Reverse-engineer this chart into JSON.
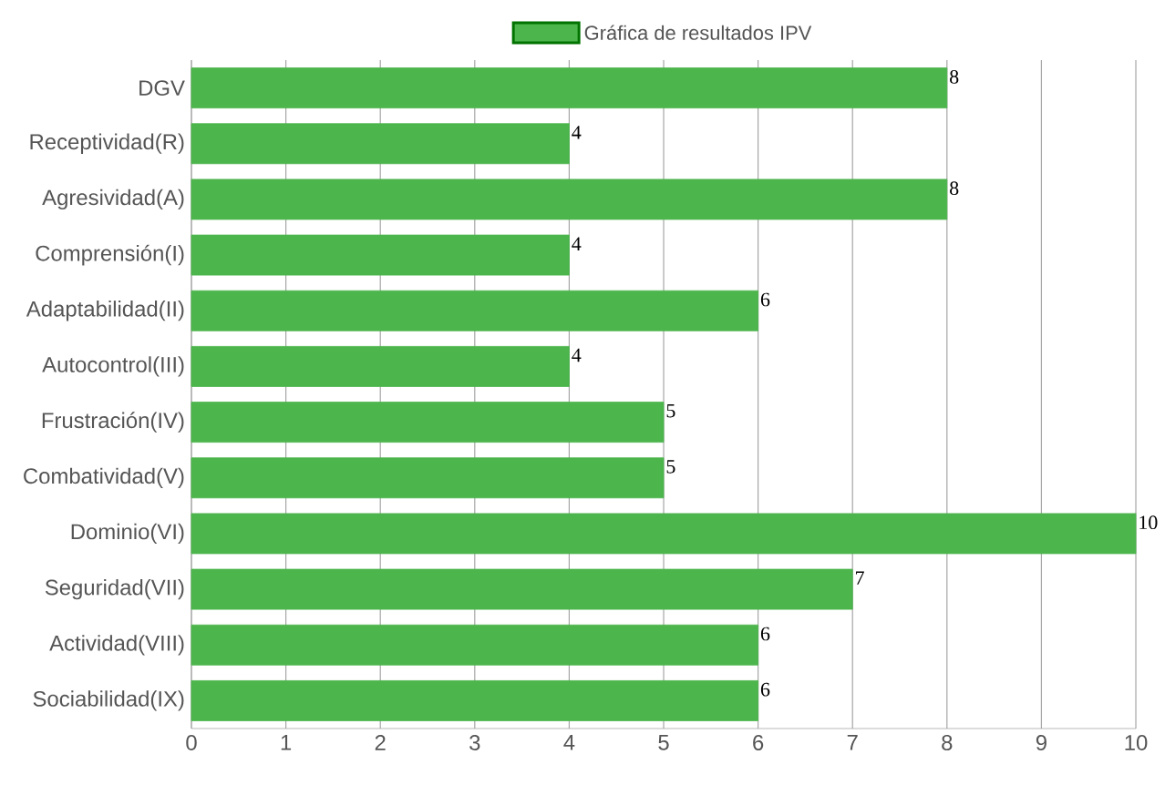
{
  "chart_data": {
    "type": "bar",
    "orientation": "horizontal",
    "categories": [
      "DGV",
      "Receptividad(R)",
      "Agresividad(A)",
      "Comprensión(I)",
      "Adaptabilidad(II)",
      "Autocontrol(III)",
      "Frustración(IV)",
      "Combatividad(V)",
      "Dominio(VI)",
      "Seguridad(VII)",
      "Actividad(VIII)",
      "Sociabilidad(IX)"
    ],
    "series": [
      {
        "name": "Gráfica de resultados IPV",
        "color": "#4cb54c",
        "values": [
          8,
          4,
          8,
          4,
          6,
          4,
          5,
          5,
          10,
          7,
          6,
          6
        ]
      }
    ],
    "xlim": [
      0,
      10
    ],
    "xticks": [
      0,
      1,
      2,
      3,
      4,
      5,
      6,
      7,
      8,
      9,
      10
    ],
    "grid": "x",
    "legend": "top",
    "data_labels": true
  }
}
